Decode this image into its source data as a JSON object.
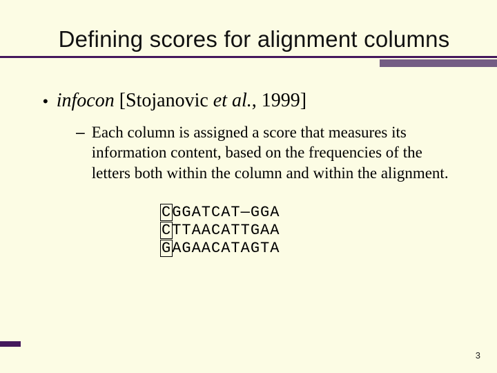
{
  "colors": {
    "background": "#fcfce4",
    "accent_line": "#44185c",
    "accent_shadow": "#745d84",
    "text": "#000000"
  },
  "title": "Defining scores for alignment columns",
  "bullet": {
    "term_italic": "infocon",
    "citation_prefix": " [Stojanovic ",
    "citation_italic": "et al.",
    "citation_suffix": ", 1999]"
  },
  "sub_bullet": "Each column is assigned a score that measures its information content, based on the frequencies of the letters both within the column and within the alignment.",
  "sequences": {
    "rows": [
      {
        "boxed": "C",
        "rest": "GGATCAT—GGA"
      },
      {
        "boxed": "C",
        "rest": "TTAACATTGAA"
      },
      {
        "boxed": "G",
        "rest": "AGAACATAGTA"
      }
    ],
    "font": "Courier New",
    "fontsize": 22
  },
  "page_number": "3",
  "typography": {
    "title_font": "Trebuchet MS",
    "title_fontsize": 33,
    "body_font": "Times New Roman",
    "bullet_fontsize": 28,
    "sub_fontsize": 23
  }
}
